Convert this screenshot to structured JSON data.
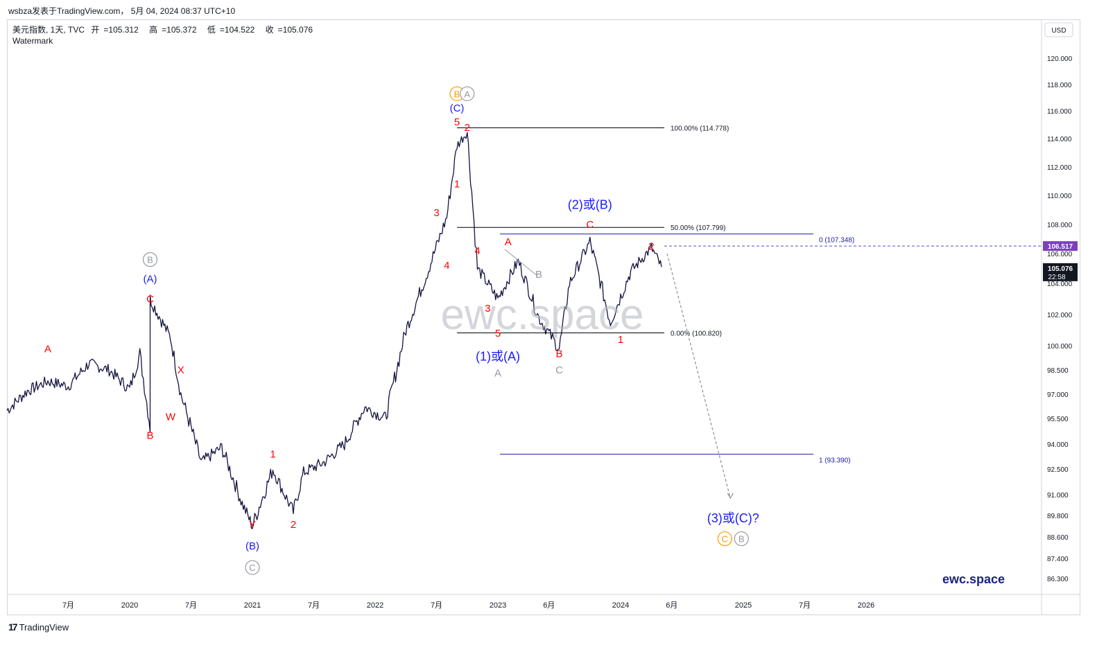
{
  "header": {
    "text": "wsbza发表于TradingView.com， 5月 04, 2024 08:37 UTC+10"
  },
  "legend": {
    "symbol": "美元指数, 1天, TVC",
    "open_label": "开",
    "open": "105.312",
    "high_label": "高",
    "high": "105.372",
    "low_label": "低",
    "low": "104.522",
    "close_label": "收",
    "close": "105.076",
    "watermark": "Watermark"
  },
  "watermark_text": "ewc.space",
  "brand_text": "ewc.space",
  "footer": {
    "logo_text": "TradingView"
  },
  "colors": {
    "wave_red": "#ff0000",
    "wave_blue": "#1a1aff",
    "orange": "#ff9800",
    "grey": "#9598a1",
    "candle": "#131340",
    "last_price_bg": "#7b3fbf"
  },
  "chart_data": {
    "type": "line",
    "currency": "USD",
    "yaxis_ticks": [
      "120.000",
      "118.000",
      "116.000",
      "114.000",
      "112.000",
      "110.000",
      "108.000",
      "106.000",
      "104.000",
      "102.000",
      "100.000",
      "98.500",
      "97.000",
      "95.500",
      "94.000",
      "92.500",
      "91.000",
      "89.800",
      "88.600",
      "87.400",
      "86.300"
    ],
    "xaxis_ticks": [
      {
        "label": "7月",
        "x": "2019-07"
      },
      {
        "label": "2020",
        "x": "2020-01"
      },
      {
        "label": "7月",
        "x": "2020-07"
      },
      {
        "label": "2021",
        "x": "2021-01"
      },
      {
        "label": "7月",
        "x": "2021-07"
      },
      {
        "label": "2022",
        "x": "2022-01"
      },
      {
        "label": "7月",
        "x": "2022-07"
      },
      {
        "label": "2023",
        "x": "2023-01"
      },
      {
        "label": "6月",
        "x": "2023-06"
      },
      {
        "label": "2024",
        "x": "2024-01"
      },
      {
        "label": "6月",
        "x": "2024-06"
      },
      {
        "label": "2025",
        "x": "2025-01"
      },
      {
        "label": "7月",
        "x": "2025-07"
      },
      {
        "label": "2026",
        "x": "2026-01"
      }
    ],
    "series": [
      {
        "x": [
          "2019-01",
          "2019-03",
          "2019-05",
          "2019-07",
          "2019-09",
          "2019-11",
          "2020-01",
          "2020-02",
          "2020-03",
          "2020-03",
          "2020-05",
          "2020-06",
          "2020-08",
          "2020-10",
          "2020-12",
          "2021-01",
          "2021-03",
          "2021-04",
          "2021-05",
          "2021-06",
          "2021-08",
          "2021-10",
          "2021-12",
          "2022-02",
          "2022-04",
          "2022-06",
          "2022-08",
          "2022-09",
          "2022-10",
          "2022-11",
          "2023-01",
          "2023-03",
          "2023-05",
          "2023-07",
          "2023-08",
          "2023-10",
          "2023-12",
          "2024-02",
          "2024-04",
          "2024-05"
        ],
        "y": [
          96.0,
          97.2,
          97.8,
          97.5,
          98.9,
          98.5,
          97.3,
          99.5,
          95.0,
          103.0,
          100.5,
          97.0,
          92.9,
          93.8,
          90.5,
          89.2,
          92.5,
          91.2,
          90.0,
          92.3,
          92.9,
          94.0,
          96.2,
          95.5,
          101.0,
          104.5,
          108.5,
          113.5,
          114.5,
          105.0,
          103.0,
          105.5,
          101.8,
          99.8,
          104.0,
          106.8,
          101.5,
          104.8,
          106.4,
          105.1
        ]
      }
    ],
    "price_labels": {
      "last_price": "106.517",
      "current_price": "105.076",
      "countdown": "22:58"
    },
    "fibonacci_left": [
      {
        "label": "100.00% (114.778)",
        "value": 114.778
      },
      {
        "label": "50.00% (107.799)",
        "value": 107.799
      },
      {
        "label": "0.00% (100.820)",
        "value": 100.82
      }
    ],
    "fibonacci_ext": [
      {
        "label": "0 (107.348)",
        "value": 107.348
      },
      {
        "label": "1 (93.390)",
        "value": 93.39
      }
    ],
    "last_price_line": 106.517,
    "projection": {
      "from_x": "2024-05",
      "from_y": 106.0,
      "to_x": "2024-12",
      "to_y": 90.8
    },
    "wave_labels": [
      {
        "text": "A",
        "color": "red",
        "x": "2019-05",
        "y": 99.8,
        "pos": "above"
      },
      {
        "text": "B",
        "color": "red",
        "x": "2020-03",
        "y": 94.5,
        "pos": "below"
      },
      {
        "text": "C",
        "color": "red",
        "x": "2020-03",
        "y": 103.0,
        "pos": "above"
      },
      {
        "text": "(A)",
        "color": "blue",
        "x": "2020-03",
        "y": 104.3,
        "pos": "above"
      },
      {
        "text": "B",
        "color": "grey",
        "circle": true,
        "x": "2020-03",
        "y": 105.6,
        "pos": "above"
      },
      {
        "text": "X",
        "color": "red",
        "x": "2020-06",
        "y": 98.5,
        "pos": "above"
      },
      {
        "text": "W",
        "color": "red",
        "x": "2020-05",
        "y": 95.6,
        "pos": "below"
      },
      {
        "text": "Y",
        "color": "red",
        "x": "2021-01",
        "y": 89.3,
        "pos": "below"
      },
      {
        "text": "(B)",
        "color": "blue",
        "x": "2021-01",
        "y": 88.1,
        "pos": "below"
      },
      {
        "text": "C",
        "color": "grey",
        "circle": true,
        "x": "2021-01",
        "y": 86.9,
        "pos": "below"
      },
      {
        "text": "1",
        "color": "red",
        "x": "2021-03",
        "y": 93.4,
        "pos": "above"
      },
      {
        "text": "2",
        "color": "red",
        "x": "2021-05",
        "y": 89.3,
        "pos": "below"
      },
      {
        "text": "3",
        "color": "red",
        "x": "2022-07",
        "y": 108.8,
        "pos": "above"
      },
      {
        "text": "4",
        "color": "red",
        "x": "2022-08",
        "y": 105.2,
        "pos": "below"
      },
      {
        "text": "1",
        "color": "red",
        "x": "2022-09",
        "y": 110.8,
        "pos": "below"
      },
      {
        "text": "5",
        "color": "red",
        "x": "2022-09",
        "y": 115.2,
        "pos": "above"
      },
      {
        "text": "(C)",
        "color": "blue",
        "x": "2022-09",
        "y": 116.2,
        "pos": "above"
      },
      {
        "text": "B",
        "color": "orange",
        "circle": true,
        "x": "2022-09",
        "y": 117.3,
        "pos": "above"
      },
      {
        "text": "A",
        "color": "grey",
        "circle": true,
        "x": "2022-10",
        "y": 117.3,
        "pos": "above"
      },
      {
        "text": "2",
        "color": "red",
        "x": "2022-10",
        "y": 114.8,
        "pos": "above"
      },
      {
        "text": "4",
        "color": "red",
        "x": "2022-11",
        "y": 106.2,
        "pos": "above"
      },
      {
        "text": "3",
        "color": "red",
        "x": "2022-12",
        "y": 102.4,
        "pos": "below"
      },
      {
        "text": "5",
        "color": "red",
        "x": "2023-01",
        "y": 100.8,
        "pos": "below"
      },
      {
        "text": "(1)或(A)",
        "color": "blue",
        "x": "2023-01",
        "y": 99.3,
        "pos": "below",
        "big": true
      },
      {
        "text": "A",
        "color": "grey",
        "x": "2023-01",
        "y": 98.3,
        "pos": "below"
      },
      {
        "text": "A",
        "color": "red",
        "x": "2023-02",
        "y": 106.8,
        "pos": "above"
      },
      {
        "text": "B",
        "color": "grey",
        "x": "2023-05",
        "y": 104.6,
        "pos": "above"
      },
      {
        "text": "B",
        "color": "red",
        "x": "2023-07",
        "y": 99.5,
        "pos": "below"
      },
      {
        "text": "C",
        "color": "grey",
        "x": "2023-07",
        "y": 98.5,
        "pos": "below"
      },
      {
        "text": "C",
        "color": "red",
        "x": "2023-10",
        "y": 108.0,
        "pos": "above"
      },
      {
        "text": "(2)或(B)",
        "color": "blue",
        "x": "2023-10",
        "y": 109.3,
        "pos": "above",
        "big": true
      },
      {
        "text": "1",
        "color": "red",
        "x": "2024-01",
        "y": 100.4,
        "pos": "below"
      },
      {
        "text": "2",
        "color": "red",
        "x": "2024-04",
        "y": 106.5,
        "pos": "above"
      },
      {
        "text": "(3)或(C)?",
        "color": "blue",
        "x": "2024-12",
        "y": 89.6,
        "pos": "below",
        "big": true
      },
      {
        "text": "C",
        "color": "orange",
        "circle": true,
        "x": "2024-12",
        "y": 88.5,
        "pos": "below"
      },
      {
        "text": "B",
        "color": "grey",
        "circle": true,
        "x": "2024-12",
        "y": 88.5,
        "pos": "below"
      }
    ]
  }
}
